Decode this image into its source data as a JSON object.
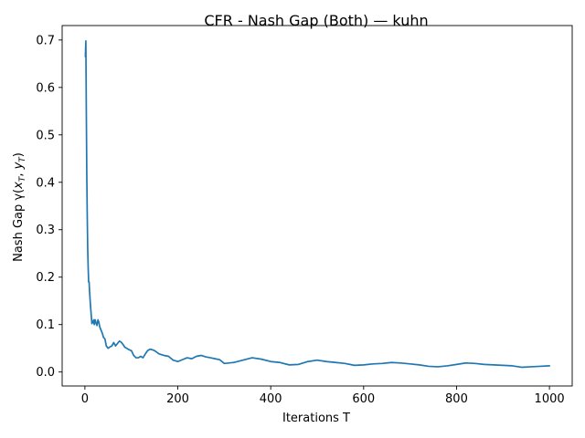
{
  "chart_data": {
    "type": "line",
    "title": "CFR - Nash Gap (Both) — kuhn",
    "xlabel": "Iterations T",
    "ylabel": "Nash Gap γ(x_T, y_T)",
    "ylabel_parts": {
      "prefix": "Nash Gap γ(",
      "x": "x",
      "x_sub": "T",
      "sep": ", ",
      "y": "y",
      "y_sub": "T",
      "suffix": ")"
    },
    "xlim": [
      -49,
      1049
    ],
    "ylim": [
      -0.0295,
      0.7305
    ],
    "xticks": [
      0,
      200,
      400,
      600,
      800,
      1000
    ],
    "xtick_labels": [
      "0",
      "200",
      "400",
      "600",
      "800",
      "1000"
    ],
    "yticks": [
      0.0,
      0.1,
      0.2,
      0.3,
      0.4,
      0.5,
      0.6,
      0.7
    ],
    "ytick_labels": [
      "0.0",
      "0.1",
      "0.2",
      "0.3",
      "0.4",
      "0.5",
      "0.6",
      "0.7"
    ],
    "grid": false,
    "color": "#1f77b4",
    "series": [
      {
        "x": [
          1,
          2,
          3,
          4,
          5,
          6,
          7,
          8,
          9,
          10,
          12,
          14,
          15,
          17,
          19,
          20,
          22,
          24,
          26,
          28,
          30,
          32,
          34,
          36,
          38,
          40,
          43,
          46,
          50,
          54,
          58,
          62,
          66,
          70,
          74,
          78,
          82,
          86,
          90,
          95,
          100,
          105,
          110,
          115,
          120,
          125,
          130,
          135,
          140,
          145,
          150,
          160,
          170,
          180,
          190,
          200,
          210,
          220,
          230,
          240,
          250,
          260,
          270,
          280,
          290,
          300,
          320,
          340,
          360,
          380,
          400,
          420,
          440,
          460,
          480,
          500,
          520,
          540,
          560,
          580,
          600,
          620,
          640,
          660,
          680,
          700,
          720,
          740,
          760,
          780,
          800,
          820,
          840,
          860,
          880,
          900,
          920,
          940,
          960,
          980,
          1000
        ],
        "y": [
          0.665,
          0.698,
          0.55,
          0.42,
          0.33,
          0.26,
          0.22,
          0.19,
          0.19,
          0.17,
          0.14,
          0.115,
          0.102,
          0.105,
          0.11,
          0.1,
          0.11,
          0.103,
          0.098,
          0.11,
          0.105,
          0.095,
          0.09,
          0.085,
          0.08,
          0.073,
          0.07,
          0.055,
          0.05,
          0.053,
          0.055,
          0.062,
          0.055,
          0.06,
          0.065,
          0.063,
          0.058,
          0.052,
          0.05,
          0.047,
          0.045,
          0.035,
          0.03,
          0.03,
          0.033,
          0.03,
          0.038,
          0.045,
          0.048,
          0.047,
          0.045,
          0.038,
          0.035,
          0.033,
          0.025,
          0.022,
          0.026,
          0.03,
          0.028,
          0.033,
          0.035,
          0.032,
          0.03,
          0.028,
          0.026,
          0.018,
          0.02,
          0.025,
          0.03,
          0.027,
          0.022,
          0.02,
          0.015,
          0.016,
          0.022,
          0.025,
          0.022,
          0.02,
          0.018,
          0.014,
          0.015,
          0.017,
          0.018,
          0.02,
          0.019,
          0.017,
          0.015,
          0.012,
          0.011,
          0.013,
          0.016,
          0.019,
          0.018,
          0.016,
          0.015,
          0.014,
          0.013,
          0.01,
          0.011,
          0.012,
          0.013
        ]
      }
    ]
  }
}
